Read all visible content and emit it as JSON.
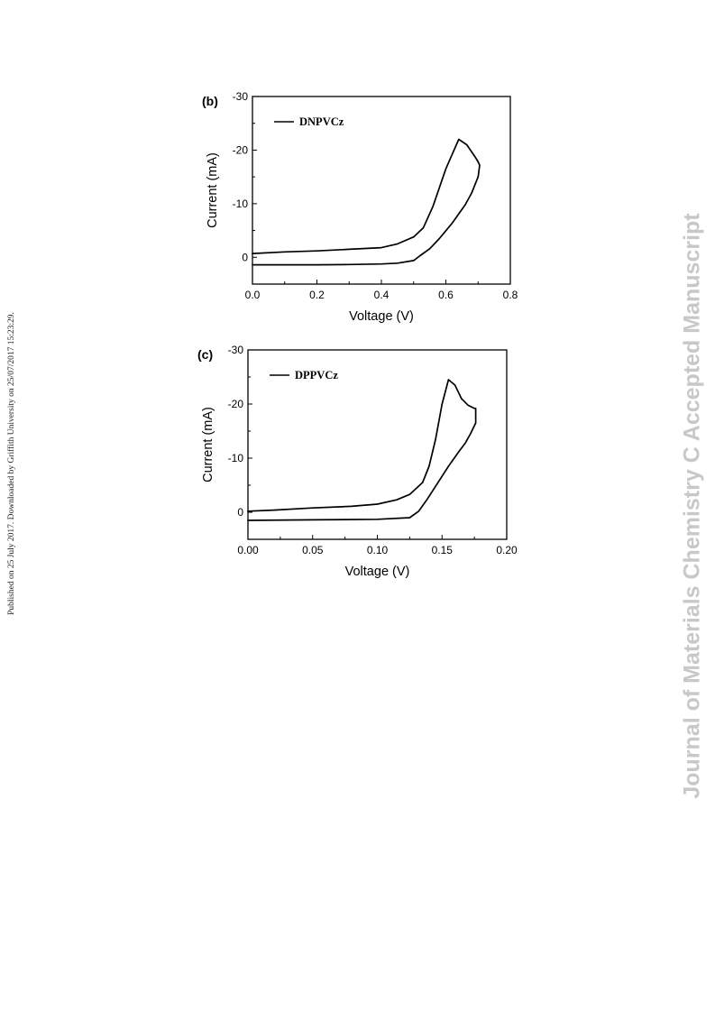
{
  "margin_note": "Published on 25 July 2017. Downloaded by Griffith University on 25/07/2017 15:23:29.",
  "watermark": "Journal of Materials Chemistry C Accepted Manuscript",
  "chart_data": [
    {
      "type": "line",
      "panel_label": "(b)",
      "xlabel": "Voltage (V)",
      "ylabel": "Current (mA)",
      "xlim": [
        0.0,
        0.8
      ],
      "ylim": [
        5,
        -30
      ],
      "y_inverted": true,
      "xticks": [
        0.0,
        0.2,
        0.4,
        0.6,
        0.8
      ],
      "xtick_labels": [
        "0.0",
        "0.2",
        "0.4",
        "0.6",
        "0.8"
      ],
      "yticks": [
        0,
        -10,
        -20,
        -30
      ],
      "ytick_labels": [
        "0",
        "-10",
        "-20",
        "-30"
      ],
      "legend_position": "top-left",
      "series": [
        {
          "name": "DNPVCz",
          "x": [
            0.0,
            0.1,
            0.2,
            0.3,
            0.4,
            0.45,
            0.5,
            0.53,
            0.56,
            0.6,
            0.64,
            0.665,
            0.69,
            0.7,
            0.705,
            0.7,
            0.68,
            0.66,
            0.62,
            0.58,
            0.55,
            0.52,
            0.5,
            0.45,
            0.4,
            0.3,
            0.2,
            0.1,
            0.0
          ],
          "y": [
            -0.7,
            -1.0,
            -1.2,
            -1.5,
            -1.8,
            -2.5,
            -3.8,
            -5.5,
            -9.5,
            -16.5,
            -22.0,
            -21.0,
            -18.8,
            -17.8,
            -17.2,
            -15.0,
            -12.0,
            -9.8,
            -6.4,
            -3.5,
            -1.6,
            -0.3,
            0.6,
            1.1,
            1.25,
            1.35,
            1.4,
            1.4,
            1.4
          ]
        }
      ]
    },
    {
      "type": "line",
      "panel_label": "(c)",
      "xlabel": "Voltage (V)",
      "ylabel": "Current (mA)",
      "xlim": [
        0.0,
        0.2
      ],
      "ylim": [
        5,
        -30
      ],
      "y_inverted": true,
      "xticks": [
        0.0,
        0.05,
        0.1,
        0.15,
        0.2
      ],
      "xtick_labels": [
        "0.00",
        "0.05",
        "0.10",
        "0.15",
        "0.20"
      ],
      "yticks": [
        0,
        -10,
        -20,
        -30
      ],
      "ytick_labels": [
        "0",
        "-10",
        "-20",
        "-30"
      ],
      "legend_position": "top-left",
      "series": [
        {
          "name": "DPPVCz",
          "x": [
            0.0,
            0.02,
            0.05,
            0.08,
            0.1,
            0.115,
            0.125,
            0.135,
            0.14,
            0.145,
            0.15,
            0.155,
            0.16,
            0.165,
            0.17,
            0.175,
            0.176,
            0.176,
            0.172,
            0.168,
            0.163,
            0.155,
            0.145,
            0.138,
            0.132,
            0.125,
            0.1,
            0.05,
            0.0
          ],
          "y": [
            -0.2,
            -0.4,
            -0.8,
            -1.1,
            -1.5,
            -2.3,
            -3.3,
            -5.5,
            -8.5,
            -13.5,
            -20.0,
            -24.5,
            -23.5,
            -21.0,
            -19.8,
            -19.2,
            -19.2,
            -16.5,
            -14.5,
            -12.8,
            -11.2,
            -8.5,
            -4.8,
            -2.2,
            -0.2,
            1.0,
            1.3,
            1.4,
            1.5
          ]
        }
      ]
    }
  ]
}
